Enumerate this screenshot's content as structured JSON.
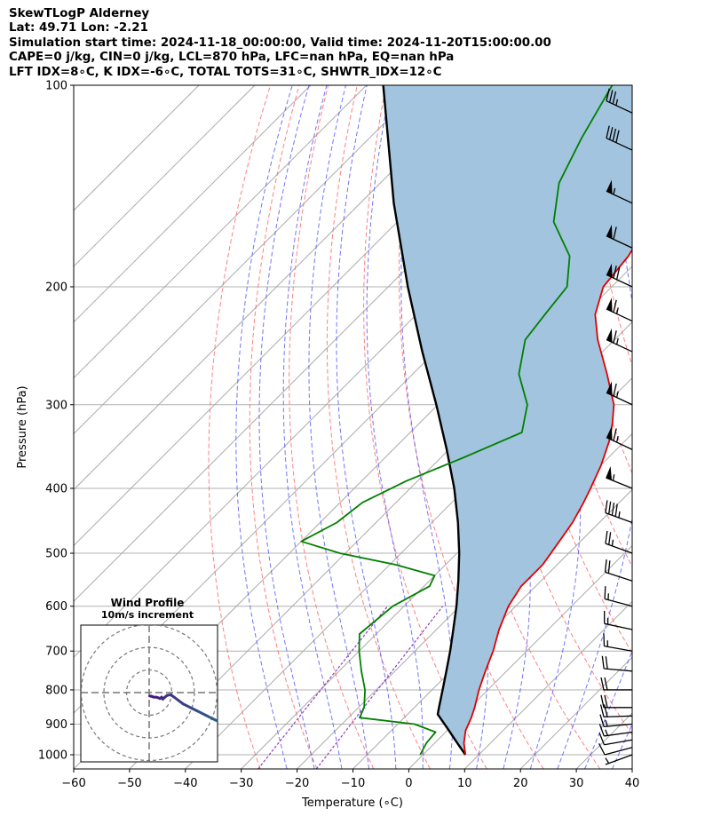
{
  "header": {
    "title": "SkewTLogP Alderney",
    "location": "Lat: 49.71   Lon: -2.21",
    "times": "Simulation start time: 2024-11-18_00:00:00, Valid time: 2024-11-20T15:00:00.00",
    "indices1": "CAPE=0 j/kg, CIN=0 j/kg, LCL=870 hPa, LFC=nan hPa, EQ=nan hPa",
    "indices2": "LFT IDX=8∘C, K IDX=-6∘C, TOTAL TOTS=31∘C, SHWTR_IDX=12∘C"
  },
  "chart_data": {
    "type": "line",
    "xlabel": "Temperature (∘C)",
    "ylabel": "Pressure (hPa)",
    "xlim": [
      -60,
      40
    ],
    "ylim": [
      1050,
      100
    ],
    "y_scale": "log",
    "x_ticks": [
      -60,
      -50,
      -40,
      -30,
      -20,
      -10,
      0,
      10,
      20,
      30,
      40
    ],
    "x_tick_labels": [
      "−60",
      "−50",
      "−40",
      "−30",
      "−20",
      "−10",
      "0",
      "10",
      "20",
      "30",
      "40"
    ],
    "y_ticks": [
      1000,
      900,
      800,
      700,
      600,
      500,
      400,
      300,
      200,
      100
    ],
    "y_tick_labels": [
      "1000",
      "900",
      "800",
      "700",
      "600",
      "500",
      "400",
      "300",
      "200",
      "100"
    ],
    "grid": true,
    "colors": {
      "temperature": "#e00000",
      "dewpoint": "#008000",
      "parcel": "#000000",
      "cape_fill": "#a2c4de",
      "isotherm": "#aaaaaa",
      "dry_adiabat": "#ff6a6a",
      "moist_adiabat": "#5a5aff",
      "mixing_ratio": "#9040c0",
      "hodograph": "#2e5f8a"
    },
    "series": [
      {
        "role": "temperature",
        "pressure": [
          1000,
          960,
          920,
          880,
          850,
          800,
          750,
          700,
          650,
          600,
          560,
          520,
          480,
          450,
          420,
          400,
          370,
          340,
          320,
          300,
          270,
          240,
          220,
          200,
          180,
          160,
          140,
          120,
          100
        ],
        "temperature": [
          7.6,
          5.2,
          3.3,
          2.0,
          0.8,
          -1.6,
          -3.8,
          -6.0,
          -8.8,
          -11.3,
          -12.6,
          -12.6,
          -13.8,
          -14.8,
          -16.4,
          -17.7,
          -19.9,
          -22.8,
          -25.4,
          -28.5,
          -35.2,
          -43.0,
          -48.0,
          -51.5,
          -52.5,
          -55.0,
          -59.0,
          -64.5,
          -71.0
        ]
      },
      {
        "role": "dewpoint",
        "pressure": [
          1000,
          960,
          925,
          900,
          880,
          850,
          800,
          750,
          700,
          660,
          600,
          560,
          540,
          520,
          500,
          480,
          450,
          420,
          390,
          360,
          330,
          300,
          270,
          240,
          220,
          200,
          180,
          160,
          140,
          120,
          100
        ],
        "temperature": [
          -0.5,
          -1.5,
          -1.8,
          -7.0,
          -18.0,
          -19.0,
          -22.0,
          -26.0,
          -30.0,
          -33.0,
          -32.0,
          -29.0,
          -30.0,
          -39.0,
          -51.0,
          -60.0,
          -57.0,
          -56.0,
          -52.0,
          -46.0,
          -40.0,
          -44.0,
          -51.0,
          -56.0,
          -57.0,
          -58.0,
          -63.0,
          -72.0,
          -78.0,
          -82.0,
          -86.0
        ]
      },
      {
        "role": "parcel",
        "pressure": [
          1000,
          960,
          920,
          870,
          850,
          800,
          750,
          700,
          650,
          600,
          550,
          500,
          450,
          400,
          350,
          300,
          250,
          200,
          150,
          100
        ],
        "temperature": [
          7.6,
          4.0,
          0.3,
          -4.6,
          -5.6,
          -8.1,
          -10.8,
          -13.7,
          -17.0,
          -20.6,
          -24.8,
          -29.6,
          -35.3,
          -42.1,
          -50.4,
          -60.3,
          -72.3,
          -86.5,
          -104.0,
          -127.0
        ]
      }
    ],
    "wind_barbs": {
      "pressure": [
        1000,
        975,
        950,
        925,
        900,
        875,
        850,
        800,
        750,
        700,
        650,
        600,
        550,
        500,
        450,
        400,
        350,
        300,
        250,
        225,
        200,
        175,
        150,
        125,
        110
      ],
      "speed_kt": [
        5,
        10,
        10,
        15,
        15,
        20,
        20,
        20,
        20,
        15,
        15,
        15,
        20,
        25,
        45,
        55,
        65,
        65,
        65,
        65,
        70,
        60,
        55,
        40,
        35
      ],
      "direction_deg": [
        250,
        255,
        260,
        262,
        265,
        268,
        270,
        270,
        275,
        280,
        282,
        285,
        288,
        290,
        290,
        292,
        295,
        295,
        295,
        295,
        295,
        295,
        295,
        295,
        295
      ]
    },
    "hodograph": {
      "title": "Wind Profile",
      "subtitle": "10m/s increment",
      "u": [
        0.2,
        1.0,
        2.0,
        3.0,
        4.0,
        4.8,
        5.5,
        6.0,
        7.0,
        8.0,
        9.5,
        11.0,
        13.0,
        15.0,
        17.0,
        19.0,
        21.0,
        23.0,
        25.0,
        27.0,
        29.0,
        31.0
      ],
      "v": [
        -1.5,
        -1.6,
        -2.0,
        -2.0,
        -2.3,
        -2.6,
        -2.0,
        -2.9,
        -2.0,
        -1.2,
        -1.0,
        -2.0,
        -3.5,
        -5.0,
        -6.0,
        -7.0,
        -8.0,
        -9.0,
        -10.0,
        -11.0,
        -12.0,
        -13.0
      ]
    }
  }
}
